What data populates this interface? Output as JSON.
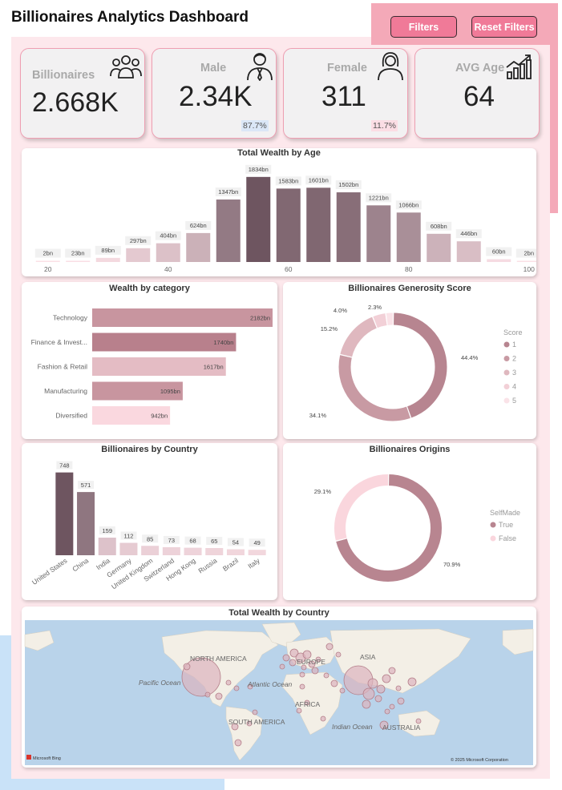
{
  "page": {
    "title": "Billionaires Analytics Dashboard"
  },
  "buttons": {
    "filters": "Filters",
    "reset": "Reset Filters"
  },
  "kpis": {
    "billionaires": {
      "label": "Billionaires",
      "value": "2.668K",
      "icon": "people-group-icon"
    },
    "male": {
      "label": "Male",
      "value": "2.34K",
      "pct": "87.7%",
      "icon": "businessman-icon"
    },
    "female": {
      "label": "Female",
      "value": "311",
      "pct": "11.7%",
      "icon": "woman-icon"
    },
    "avg_age": {
      "label": "AVG Age",
      "value": "64",
      "icon": "growth-chart-icon"
    }
  },
  "colors": {
    "accent_pink": "#f07a98",
    "band_pink": "#f4a9b8",
    "panel_pink": "#fde8ec",
    "male_badge": "#dbe7f7",
    "female_badge": "#fbdde4"
  },
  "chart_data": [
    {
      "id": "wealth_by_age",
      "type": "bar",
      "title": "Total Wealth by Age",
      "categories": [
        "20",
        "25",
        "30",
        "35",
        "40",
        "45",
        "50",
        "55",
        "60",
        "65",
        "70",
        "75",
        "80",
        "85",
        "90",
        "95",
        "100"
      ],
      "values": [
        2,
        23,
        89,
        297,
        404,
        624,
        1347,
        1834,
        1583,
        1601,
        1502,
        1221,
        1066,
        608,
        446,
        60,
        2
      ],
      "labels": [
        "2bn",
        "23bn",
        "89bn",
        "297bn",
        "404bn",
        "624bn",
        "1347bn",
        "1834bn",
        "1583bn",
        "1601bn",
        "1502bn",
        "1221bn",
        "1066bn",
        "608bn",
        "446bn",
        "60bn",
        "2bn"
      ],
      "x_ticks": [
        "20",
        "40",
        "60",
        "80",
        "100"
      ],
      "ylim": [
        0,
        1900
      ],
      "grid": false
    },
    {
      "id": "wealth_by_category",
      "type": "bar",
      "orientation": "horizontal",
      "title": "Wealth by category",
      "categories": [
        "Technology",
        "Finance & Invest...",
        "Fashion & Retail",
        "Manufacturing",
        "Diversified"
      ],
      "values": [
        2182,
        1740,
        1617,
        1095,
        942
      ],
      "labels": [
        "2182bn",
        "1740bn",
        "1617bn",
        "1095bn",
        "942bn"
      ],
      "xlim": [
        0,
        2182
      ]
    },
    {
      "id": "generosity_score",
      "type": "pie",
      "donut": true,
      "title": "Billionaires Generosity Score",
      "legend_title": "Score",
      "legend_position": "right",
      "categories": [
        "1",
        "2",
        "3",
        "4",
        "5"
      ],
      "values": [
        44.4,
        34.1,
        15.2,
        4.0,
        2.3
      ],
      "labels": [
        "44.4%",
        "34.1%",
        "15.2%",
        "4.0%",
        "2.3%"
      ],
      "colors": [
        "#b78590",
        "#c89aa3",
        "#dfb8bf",
        "#f2d0d7",
        "#fae3e8"
      ]
    },
    {
      "id": "by_country",
      "type": "bar",
      "title": "Billionaires by Country",
      "categories": [
        "United States",
        "China",
        "India",
        "Germany",
        "United Kingdom",
        "Switzerland",
        "Hong Kong",
        "Russia",
        "Brazil",
        "Italy"
      ],
      "values": [
        748,
        571,
        159,
        112,
        85,
        73,
        68,
        65,
        54,
        49
      ],
      "ylim": [
        0,
        760
      ]
    },
    {
      "id": "origins",
      "type": "pie",
      "donut": true,
      "title": "Billionaires Origins",
      "legend_title": "SelfMade",
      "legend_position": "right",
      "categories": [
        "True",
        "False"
      ],
      "values": [
        70.9,
        29.1
      ],
      "labels": [
        "70.9%",
        "29.1%"
      ],
      "colors": [
        "#b88590",
        "#fad6dd"
      ]
    }
  ],
  "map": {
    "title": "Total Wealth by Country",
    "regions": [
      "NORTH AMERICA",
      "EUROPE",
      "ASIA",
      "AFRICA",
      "SOUTH AMERICA",
      "AUSTRALIA"
    ],
    "oceans": [
      "Pacific Ocean",
      "Atlantic Ocean",
      "Indian Ocean"
    ],
    "attribution_left": "Microsoft Bing",
    "attribution_right": "© 2025 Microsoft Corporation"
  }
}
